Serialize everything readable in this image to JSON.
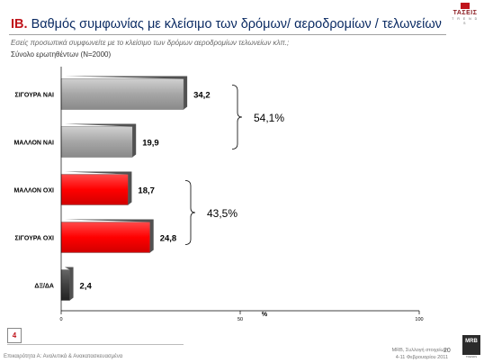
{
  "header": {
    "logo_text": "ΤΑΣΕΙΣ",
    "logo_sub": "T R E N D S",
    "title_number": "IB.",
    "title_text": "Βαθμός συμφωνίας με κλείσιμο των δρόμων/ αεροδρομίων / τελωνείων",
    "question": "Εσείς προσωπικά συμφωνείτε με το κλείσιμο των δρόμων αεροδρομίων τελωνείων κλπ.;",
    "base": "Σύνολο ερωτηθέντων (N=2000)"
  },
  "chart_data": {
    "type": "bar",
    "orientation": "horizontal",
    "categories": [
      "ΣΙΓΟΥΡΑ ΝΑΙ",
      "ΜΑΛΛΟΝ ΝΑΙ",
      "ΜΑΛΛΟΝ ΟΧΙ",
      "ΣΙΓΟΥΡΑ ΟΧΙ",
      "ΔΞ/ΔΑ"
    ],
    "values": [
      34.2,
      19.9,
      18.7,
      24.8,
      2.4
    ],
    "value_labels": [
      "34,2",
      "19,9",
      "18,7",
      "24,8",
      "2,4"
    ],
    "bar_colors": [
      "#a6a6a6",
      "#a6a6a6",
      "#ff0000",
      "#ff0000",
      "#404040"
    ],
    "xlim": [
      0,
      100
    ],
    "xticks": [
      "0",
      "50",
      "100"
    ],
    "xlabel": "%",
    "grid": false,
    "groups": [
      {
        "label": "54,1%",
        "from": 0,
        "to": 1
      },
      {
        "label": "43,5%",
        "from": 2,
        "to": 3
      }
    ]
  },
  "footer": {
    "page_number": "4",
    "left_text": "Επικαιρότητα Α: Αναλυτικά & Ανακατασκευασμένα",
    "right_line1": "MRB, Συλλογή στοιχείων:",
    "right_line2": "4-11 Φεβρουαρίου 2011",
    "page_right": "20",
    "mrb_logo": "MRB",
    "mrb_sub": "TRENDS"
  }
}
